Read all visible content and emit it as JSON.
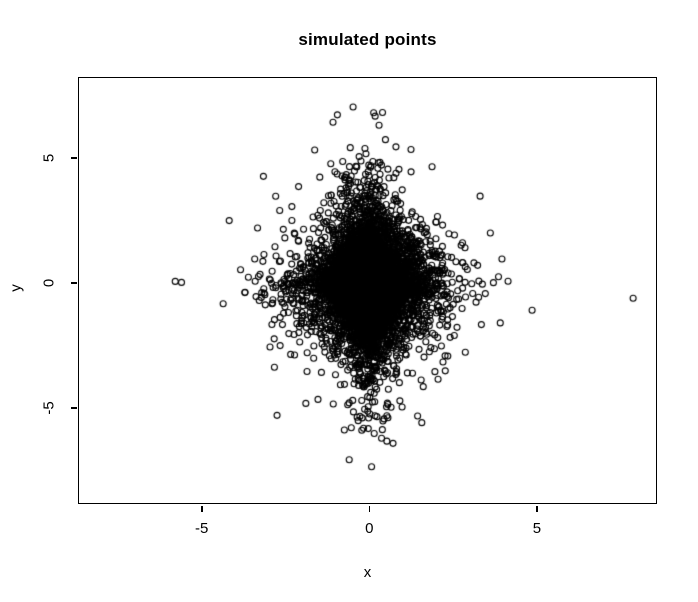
{
  "figure": {
    "background": "#ffffff",
    "foreground": "#000000"
  },
  "chart_data": {
    "type": "scatter",
    "title": "simulated points",
    "xlabel": "x",
    "ylabel": "y",
    "xlim": [
      -8.69,
      8.58
    ],
    "ylim": [
      -8.84,
      8.24
    ],
    "x_ticks": [
      {
        "value": -5,
        "label": "-5"
      },
      {
        "value": 0,
        "label": "0"
      },
      {
        "value": 5,
        "label": "5"
      }
    ],
    "y_ticks": [
      {
        "value": -5,
        "label": "-5"
      },
      {
        "value": 0,
        "label": "0"
      },
      {
        "value": 5,
        "label": "5"
      }
    ],
    "grid": false,
    "legend": false,
    "marker": {
      "shape": "open-circle",
      "radius_px": 3,
      "stroke": "#000000",
      "stroke_width": 1.1
    },
    "n_points": 8000,
    "point_cloud": {
      "description": "dense solid-black diamond-shaped core centered at the origin with sparse tails stretching along both axes (iid Laplace-like samples)",
      "kind": "laplace-iid",
      "x_center": 0,
      "y_center": 0,
      "x_scale": 0.56,
      "y_scale": 0.95,
      "seed": 7,
      "observed_x_extent": [
        -4.6,
        4.9
      ],
      "observed_y_extent": [
        -8.4,
        7.6
      ],
      "solid_core_extent": {
        "x": [
          -2.1,
          2.1
        ],
        "y": [
          -3.7,
          3.7
        ]
      }
    }
  }
}
